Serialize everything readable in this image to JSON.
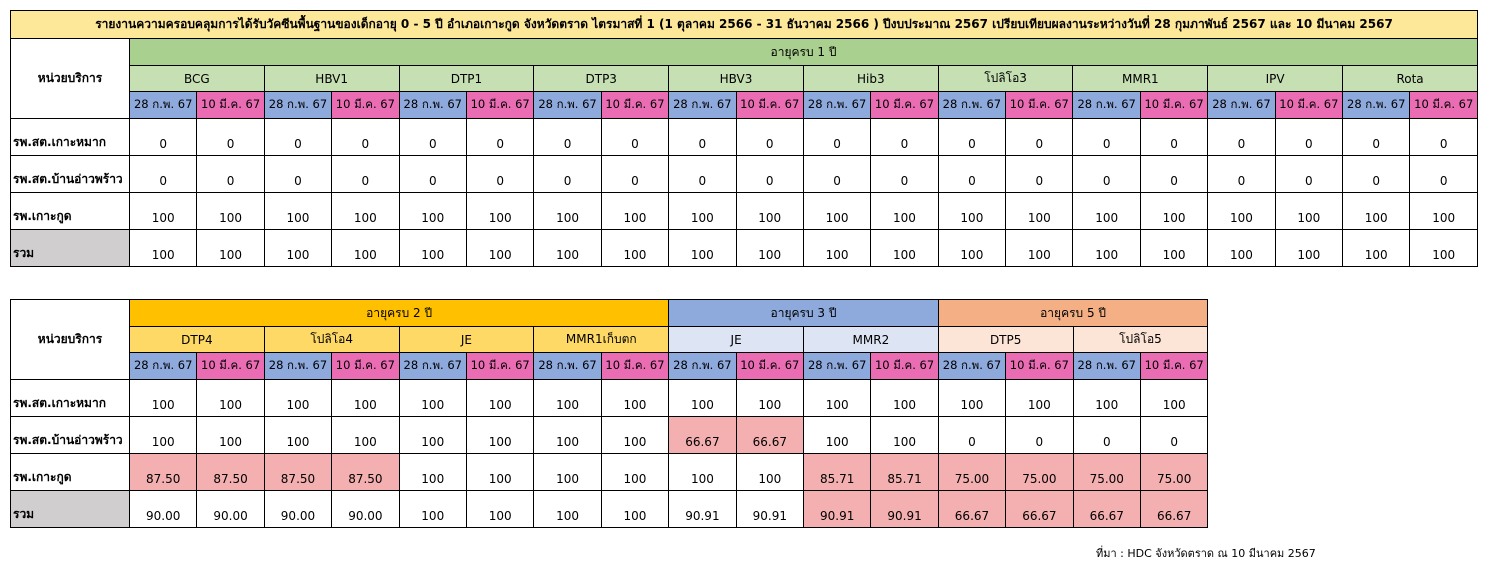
{
  "table1": {
    "title": "รายงานความครอบคลุมการได้รับวัคซีนพื้นฐานของเด็กอายุ 0 - 5 ปี อำเภอเกาะกูด จังหวัดตราด ไตรมาสที่ 1 (1 ตุลาคม 2566 - 31 ธันวาคม 2566 ) ปีงบประมาณ 2567  เปรียบเทียบผลงานระหว่างวันที่ 28 กุมภาพันธ์ 2567 และ 10 มีนาคม 2567",
    "unit_header": "หน่วยบริการ",
    "age_group": "อายุครบ 1 ปี",
    "vaccines": [
      "BCG",
      "HBV1",
      "DTP1",
      "DTP3",
      "HBV3",
      "Hib3",
      "โปลิโอ3",
      "MMR1",
      "IPV",
      "Rota"
    ],
    "date_a": "28 ก.พ. 67",
    "date_b": "10 มี.ค. 67",
    "rows": [
      {
        "unit": "รพ.สต.เกาะหมาก",
        "values": [
          "0",
          "0",
          "0",
          "0",
          "0",
          "0",
          "0",
          "0",
          "0",
          "0",
          "0",
          "0",
          "0",
          "0",
          "0",
          "0",
          "0",
          "0",
          "0",
          "0"
        ]
      },
      {
        "unit": "รพ.สต.บ้านอ่าวพร้าว",
        "values": [
          "0",
          "0",
          "0",
          "0",
          "0",
          "0",
          "0",
          "0",
          "0",
          "0",
          "0",
          "0",
          "0",
          "0",
          "0",
          "0",
          "0",
          "0",
          "0",
          "0"
        ]
      },
      {
        "unit": "รพ.เกาะกูด",
        "values": [
          "100",
          "100",
          "100",
          "100",
          "100",
          "100",
          "100",
          "100",
          "100",
          "100",
          "100",
          "100",
          "100",
          "100",
          "100",
          "100",
          "100",
          "100",
          "100",
          "100"
        ]
      },
      {
        "unit": "รวม",
        "values": [
          "100",
          "100",
          "100",
          "100",
          "100",
          "100",
          "100",
          "100",
          "100",
          "100",
          "100",
          "100",
          "100",
          "100",
          "100",
          "100",
          "100",
          "100",
          "100",
          "100"
        ]
      }
    ]
  },
  "table2": {
    "unit_header": "หน่วยบริการ",
    "age_groups": [
      {
        "label": "อายุครบ 2 ปี",
        "vaccines": [
          "DTP4",
          "โปลิโอ4",
          "JE",
          "MMR1เก็บตก"
        ]
      },
      {
        "label": "อายุครบ 3 ปี",
        "vaccines": [
          "JE",
          "MMR2"
        ]
      },
      {
        "label": "อายุครบ 5 ปี",
        "vaccines": [
          "DTP5",
          "โปลิโอ5"
        ]
      }
    ],
    "date_a": "28 ก.พ. 67",
    "date_b": "10 มี.ค. 67",
    "rows": [
      {
        "unit": "รพ.สต.เกาะหมาก",
        "values": [
          "100",
          "100",
          "100",
          "100",
          "100",
          "100",
          "100",
          "100",
          "100",
          "100",
          "100",
          "100",
          "100",
          "100",
          "100",
          "100"
        ],
        "highlight": []
      },
      {
        "unit": "รพ.สต.บ้านอ่าวพร้าว",
        "values": [
          "100",
          "100",
          "100",
          "100",
          "100",
          "100",
          "100",
          "100",
          "66.67",
          "66.67",
          "100",
          "100",
          "0",
          "0",
          "0",
          "0"
        ],
        "highlight": [
          8,
          9
        ]
      },
      {
        "unit": "รพ.เกาะกูด",
        "values": [
          "87.50",
          "87.50",
          "87.50",
          "87.50",
          "100",
          "100",
          "100",
          "100",
          "100",
          "100",
          "85.71",
          "85.71",
          "75.00",
          "75.00",
          "75.00",
          "75.00"
        ],
        "highlight": [
          0,
          1,
          2,
          3,
          10,
          11,
          12,
          13,
          14,
          15
        ]
      },
      {
        "unit": "รวม",
        "values": [
          "90.00",
          "90.00",
          "90.00",
          "90.00",
          "100",
          "100",
          "100",
          "100",
          "90.91",
          "90.91",
          "90.91",
          "90.91",
          "66.67",
          "66.67",
          "66.67",
          "66.67"
        ],
        "highlight": [
          10,
          11,
          12,
          13,
          14,
          15
        ]
      }
    ]
  },
  "source": "ที่มา : HDC จังหวัดตราด ณ 10 มีนาคม  2567",
  "colors": {
    "title": "#fde89a",
    "age1": "#a9d08e",
    "age2": "#ffc000",
    "age3": "#8ea9db",
    "age5": "#f4b084",
    "date_a": "#8ea9db",
    "date_b": "#ea6db4",
    "highlight": "#f4b0b0"
  }
}
